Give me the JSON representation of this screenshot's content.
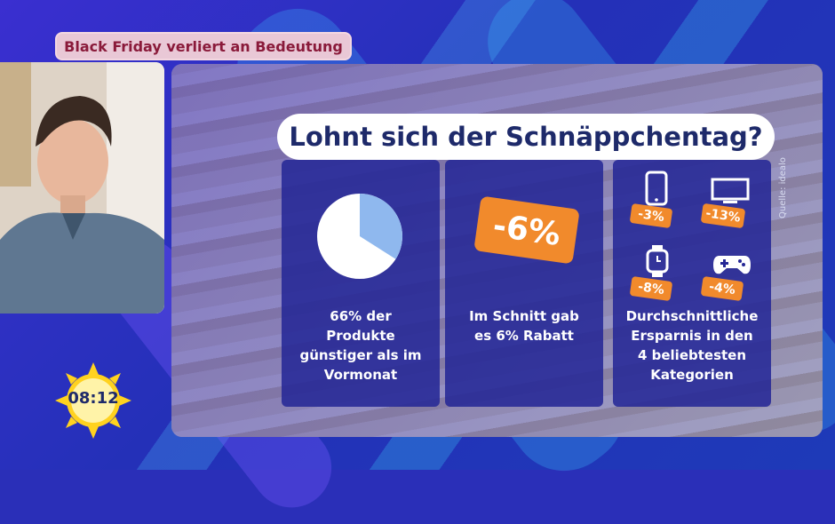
{
  "banner": {
    "text": "Black Friday verliert an Bedeutung"
  },
  "infographic": {
    "title": "Lohnt sich der Schnäppchentag?",
    "source": "Quelle: idealo",
    "panel1": {
      "pie_share_percent": 66,
      "caption_lines": [
        "66% der",
        "Produkte",
        "günstiger als im",
        "Vormonat"
      ]
    },
    "panel2": {
      "tag": "-6%",
      "caption_lines": [
        "Im Schnitt gab",
        "es 6% Rabatt"
      ]
    },
    "panel3": {
      "categories": [
        {
          "icon": "smartphone-icon",
          "tag": "-3%"
        },
        {
          "icon": "tv-icon",
          "tag": "-13%"
        },
        {
          "icon": "smartwatch-icon",
          "tag": "-8%"
        },
        {
          "icon": "gamepad-icon",
          "tag": "-4%"
        }
      ],
      "caption_lines": [
        "Durchschnittliche",
        "Ersparnis in den",
        "4 beliebtesten",
        "Kategorien"
      ]
    }
  },
  "clock": {
    "time": "08:12"
  },
  "colors": {
    "accent_orange": "#f18a2c",
    "title_text": "#1e2a6a",
    "banner_text": "#8a1a3a",
    "pie_light": "#8fb8ee"
  }
}
